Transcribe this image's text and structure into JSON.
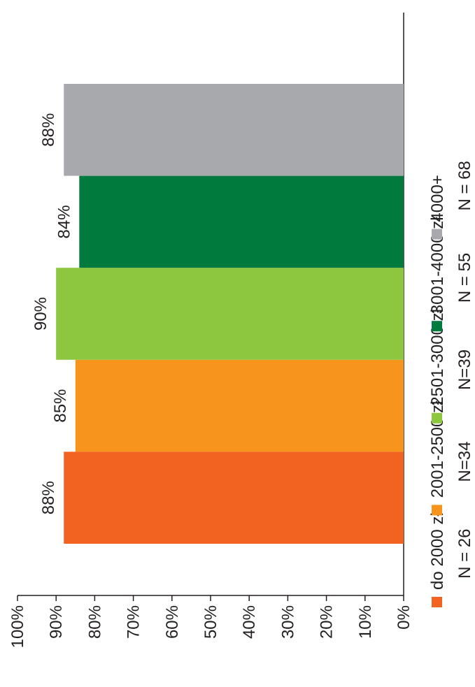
{
  "chart_data": {
    "type": "bar",
    "orientation": "rotated-90-ccw",
    "title": "",
    "xlabel": "",
    "ylabel": "",
    "ylim": [
      0,
      100
    ],
    "yticks": [
      "0%",
      "10%",
      "20%",
      "30%",
      "40%",
      "50%",
      "60%",
      "70%",
      "80%",
      "90%",
      "100%"
    ],
    "grid": false,
    "legend_placement": "right",
    "categories": [
      "do 2000 zł",
      "2001-2500 zł",
      "2501-3000 zł",
      "3001-4000 zł",
      "4000+"
    ],
    "values": [
      88,
      85,
      90,
      84,
      88
    ],
    "data_labels": [
      "88%",
      "85%",
      "90%",
      "84%",
      "88%"
    ],
    "sample_sizes": [
      "N = 26",
      "N=34",
      "N=39",
      "N = 55",
      "N = 68"
    ],
    "colors": [
      "#f26322",
      "#f7941d",
      "#8dc63f",
      "#007a3d",
      "#a7a9ac"
    ]
  }
}
